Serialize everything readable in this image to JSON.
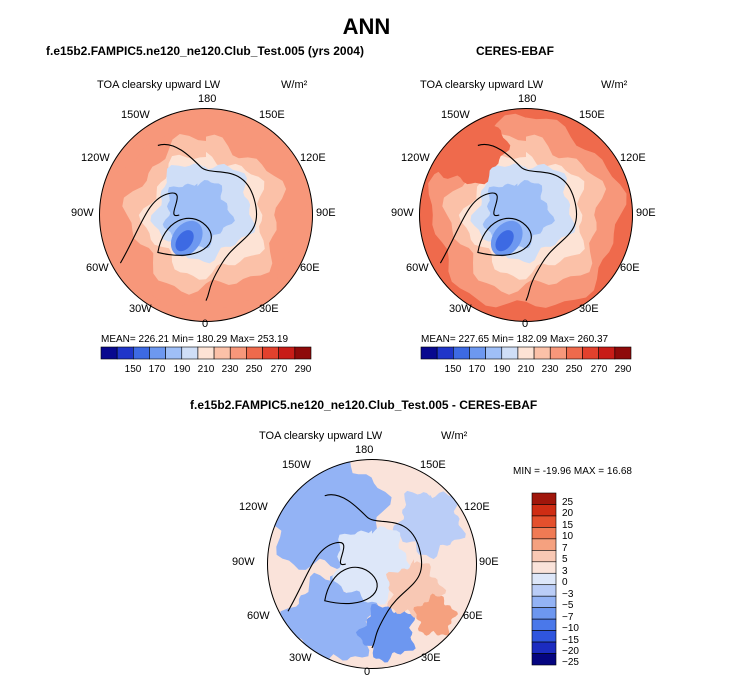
{
  "title": "ANN",
  "colors": {
    "abs_scale": [
      "#08088f",
      "#1f35c9",
      "#3d6ae3",
      "#6d98f0",
      "#9fbff7",
      "#cfdef7",
      "#fde3d5",
      "#fbc1a8",
      "#f7977a",
      "#ef6a4c",
      "#e2412d",
      "#c81c17",
      "#8e0a0a"
    ],
    "diff_scale": [
      "#050580",
      "#1c2cc0",
      "#2f55de",
      "#4a78ea",
      "#6d97f0",
      "#93b3f5",
      "#bacdf7",
      "#dde7f9",
      "#fae3da",
      "#f8c8b4",
      "#f5a17f",
      "#f07a54",
      "#e4502d",
      "#cf2d14",
      "#a0160b"
    ],
    "coast": "#000000"
  },
  "panels": [
    {
      "title": "f.e15b2.FAMPIC5.ne120_ne120.Club_Test.005 (yrs 2004)",
      "variable": "TOA clearsky upward LW",
      "units": "W/m²",
      "stats": "MEAN= 226.21   Min= 180.29   Max= 253.19",
      "lon_labels": [
        "180",
        "150E",
        "120E",
        "90E",
        "60E",
        "30E",
        "0",
        "30W",
        "60W",
        "90W",
        "120W",
        "150W"
      ]
    },
    {
      "title": "CERES-EBAF",
      "variable": "TOA clearsky upward LW",
      "units": "W/m²",
      "stats": "MEAN= 227.65   Min= 182.09   Max= 260.37",
      "lon_labels": [
        "180",
        "150E",
        "120E",
        "90E",
        "60E",
        "30E",
        "0",
        "30W",
        "60W",
        "90W",
        "120W",
        "150W"
      ]
    },
    {
      "title": "f.e15b2.FAMPIC5.ne120_ne120.Club_Test.005 - CERES-EBAF",
      "variable": "TOA clearsky upward LW",
      "units": "W/m²",
      "stats": "MIN = -19.96 MAX =  16.68",
      "lon_labels": [
        "180",
        "150E",
        "120E",
        "90E",
        "60E",
        "30E",
        "0",
        "30W",
        "60W",
        "90W",
        "120W",
        "150W"
      ]
    }
  ],
  "chart_data": [
    {
      "type": "heatmap",
      "projection": "north polar stereographic",
      "title": "f.e15b2.FAMPIC5.ne120_ne120.Club_Test.005 (yrs 2004)",
      "variable": "TOA clearsky upward LW",
      "units": "W/m²",
      "mean": 226.21,
      "min": 180.29,
      "max": 253.19,
      "colorbar_ticks": [
        "150",
        "170",
        "190",
        "210",
        "230",
        "250",
        "270",
        "290"
      ]
    },
    {
      "type": "heatmap",
      "projection": "north polar stereographic",
      "title": "CERES-EBAF",
      "variable": "TOA clearsky upward LW",
      "units": "W/m²",
      "mean": 227.65,
      "min": 182.09,
      "max": 260.37,
      "colorbar_ticks": [
        "150",
        "170",
        "190",
        "210",
        "230",
        "250",
        "270",
        "290"
      ]
    },
    {
      "type": "heatmap",
      "projection": "north polar stereographic",
      "title": "f.e15b2.FAMPIC5.ne120_ne120.Club_Test.005 - CERES-EBAF",
      "variable": "TOA clearsky upward LW",
      "units": "W/m²",
      "min": -19.96,
      "max": 16.68,
      "colorbar_ticks": [
        "25",
        "20",
        "15",
        "10",
        "7",
        "5",
        "3",
        "0",
        "−3",
        "−5",
        "−7",
        "−10",
        "−15",
        "−20",
        "−25"
      ]
    }
  ]
}
